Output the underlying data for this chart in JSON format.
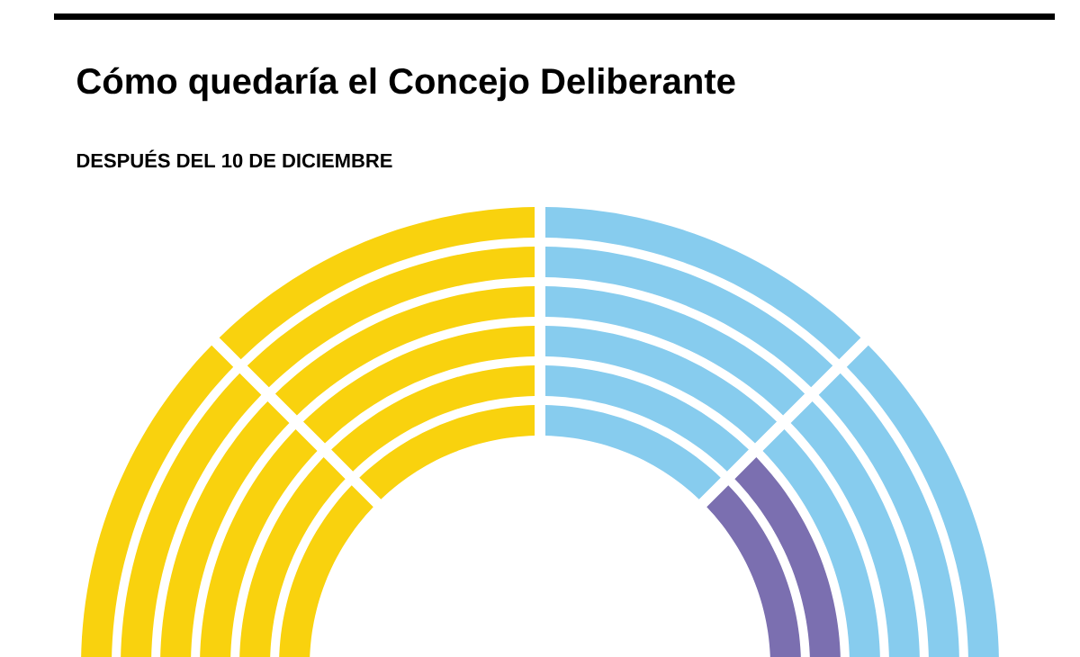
{
  "chart_data": {
    "type": "donut",
    "title": "Cómo quedaría el Concejo Deliberante",
    "subtitle": "DESPUÉS DEL 10 DE DICIEMBRE",
    "categories": [
      null,
      null,
      null,
      null
    ],
    "series": [
      {
        "values": [
          25,
          25,
          25,
          25
        ],
        "colors": [
          "#f9d20e",
          "#f9d20e",
          "#87ccee",
          "#87ccee"
        ]
      },
      {
        "values": [
          25,
          25,
          25,
          25
        ],
        "colors": [
          "#f9d20e",
          "#f9d20e",
          "#87ccee",
          "#87ccee"
        ]
      },
      {
        "values": [
          25,
          25,
          25,
          25
        ],
        "colors": [
          "#f9d20e",
          "#f9d20e",
          "#87ccee",
          "#87ccee"
        ]
      },
      {
        "values": [
          25,
          25,
          25,
          25
        ],
        "colors": [
          "#f9d20e",
          "#f9d20e",
          "#87ccee",
          "#87ccee"
        ]
      },
      {
        "values": [
          25,
          25,
          25,
          25
        ],
        "colors": [
          "#f9d20e",
          "#f9d20e",
          "#87ccee",
          "#7b6fb0"
        ]
      },
      {
        "values": [
          25,
          25,
          25,
          25
        ],
        "colors": [
          "#f9d20e",
          "#f9d20e",
          "#87ccee",
          "#7b6fb0"
        ]
      }
    ]
  }
}
